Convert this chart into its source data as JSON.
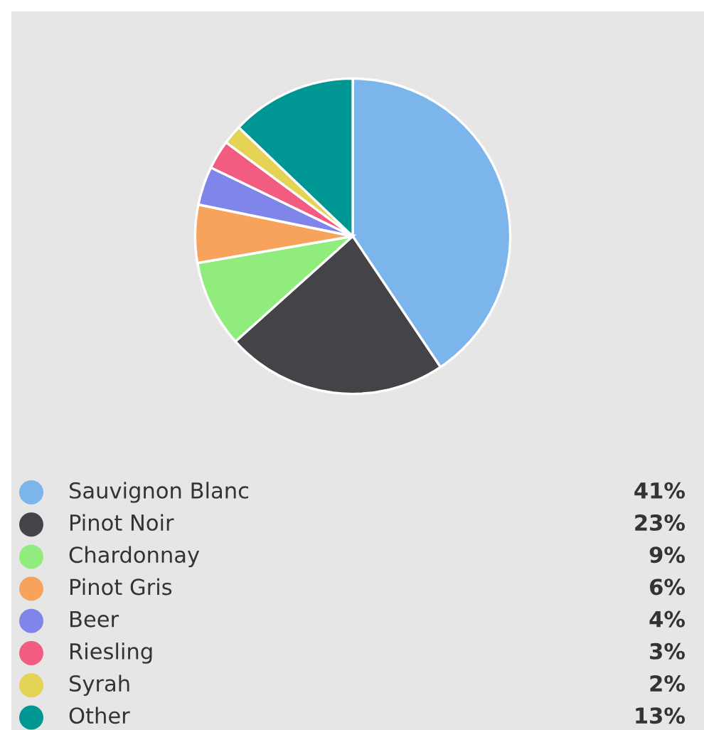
{
  "chart_data": {
    "type": "pie",
    "categories": [
      "Sauvignon Blanc",
      "Pinot Noir",
      "Chardonnay",
      "Pinot Gris",
      "Beer",
      "Riesling",
      "Syrah",
      "Other"
    ],
    "values": [
      41,
      23,
      9,
      6,
      4,
      3,
      2,
      13
    ],
    "value_labels": [
      "41%",
      "23%",
      "9%",
      "6%",
      "4%",
      "3%",
      "2%",
      "13%"
    ],
    "colors": [
      "#7cb5ec",
      "#434348",
      "#90ed7d",
      "#f7a35c",
      "#8085e9",
      "#f15c80",
      "#e4d354",
      "#009694"
    ],
    "legend": "bottom"
  }
}
